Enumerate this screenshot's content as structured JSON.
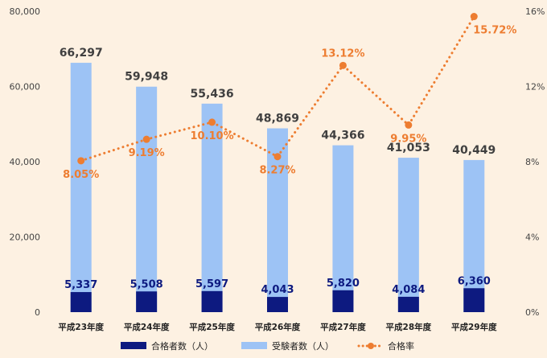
{
  "chart_data": {
    "type": "bar",
    "categories": [
      "平成23年度",
      "平成24年度",
      "平成25年度",
      "平成26年度",
      "平成27年度",
      "平成28年度",
      "平成29年度"
    ],
    "series": [
      {
        "name": "合格者数（人）",
        "kind": "bar",
        "axis": "left",
        "color": "#0d1a80",
        "values": [
          5337,
          5508,
          5597,
          4043,
          5820,
          4084,
          6360
        ],
        "labels": [
          "5,337",
          "5,508",
          "5,597",
          "4,043",
          "5,820",
          "4,084",
          "6,360"
        ]
      },
      {
        "name": "受験者数（人）",
        "kind": "bar",
        "axis": "left",
        "color": "#9dc3f5",
        "values": [
          66297,
          59948,
          55436,
          48869,
          44366,
          41053,
          40449
        ],
        "labels": [
          "66,297",
          "59,948",
          "55,436",
          "48,869",
          "44,366",
          "41,053",
          "40,449"
        ]
      },
      {
        "name": "合格率",
        "kind": "line",
        "style": "dotted",
        "axis": "right",
        "color": "#ed7d31",
        "values": [
          8.05,
          9.19,
          10.1,
          8.27,
          13.12,
          9.95,
          15.72
        ],
        "labels": [
          "8.05%",
          "9.19%",
          "10.10%",
          "8.27%",
          "13.12%",
          "9.95%",
          "15.72%"
        ]
      }
    ],
    "y_left": {
      "ylim": [
        0,
        80000
      ],
      "ticks": [
        "0",
        "20,000",
        "40,000",
        "60,000",
        "80,000"
      ]
    },
    "y_right": {
      "ylim": [
        0,
        16
      ],
      "ticks": [
        "0%",
        "4%",
        "8%",
        "12%",
        "16%"
      ]
    },
    "grid": false,
    "legend_position": "bottom"
  }
}
